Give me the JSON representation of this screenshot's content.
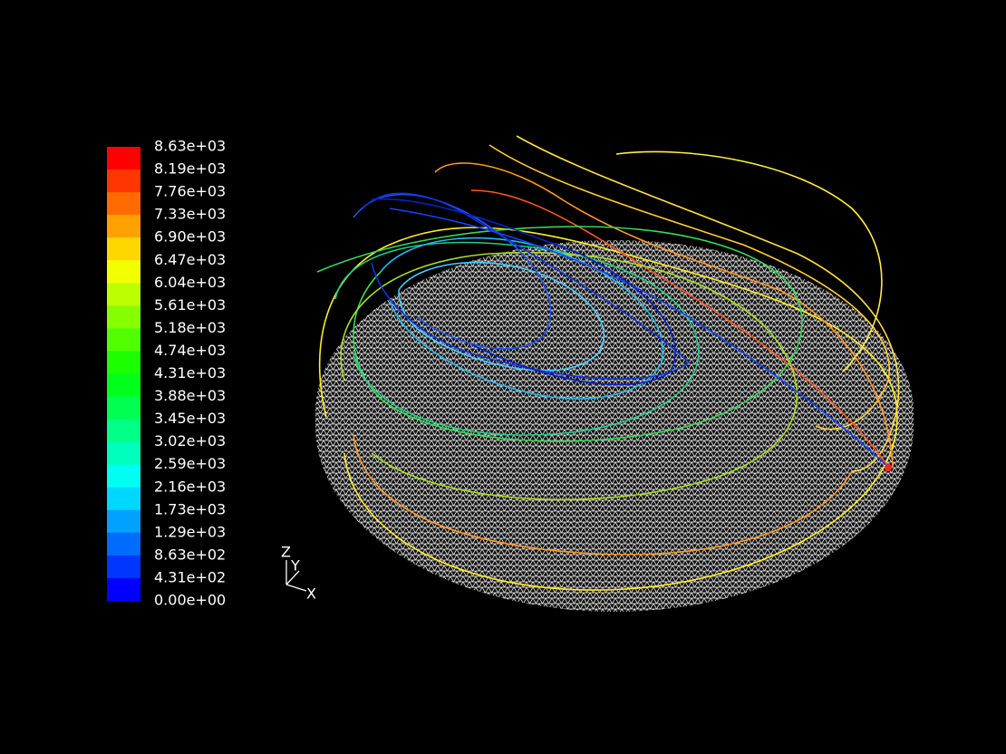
{
  "colorbar": {
    "labels": [
      "8.63e+03",
      "8.19e+03",
      "7.76e+03",
      "7.33e+03",
      "6.90e+03",
      "6.47e+03",
      "6.04e+03",
      "5.61e+03",
      "5.18e+03",
      "4.74e+03",
      "4.31e+03",
      "3.88e+03",
      "3.45e+03",
      "3.02e+03",
      "2.59e+03",
      "2.16e+03",
      "1.73e+03",
      "1.29e+03",
      "8.63e+02",
      "4.31e+02",
      "0.00e+00"
    ]
  },
  "triad": {
    "z": "Z",
    "y": "Y",
    "x": "X"
  }
}
